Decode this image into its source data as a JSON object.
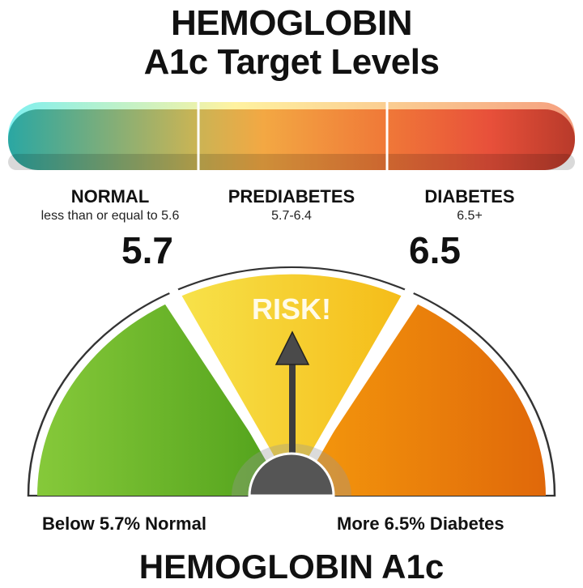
{
  "title": {
    "line1": "HEMOGLOBIN",
    "line2": "A1c Target Levels"
  },
  "categories": [
    {
      "name": "NORMAL",
      "range": "less than or equal to 5.6"
    },
    {
      "name": "PREDIABETES",
      "range": "5.7-6.4"
    },
    {
      "name": "DIABETES",
      "range": "6.5+"
    }
  ],
  "thresholds": {
    "low": "5.7",
    "high": "6.5"
  },
  "gauge": {
    "center_label": "RISK!",
    "needle_segment": "prediabetes",
    "colors": {
      "normal": "#6cb92a",
      "risk": "#f5c41e",
      "diabetes": "#ee8a10",
      "hub": "#555555"
    }
  },
  "footer": {
    "left": "Below 5.7% Normal",
    "right": "More 6.5% Diabetes",
    "title": "HEMOGLOBIN A1c"
  }
}
